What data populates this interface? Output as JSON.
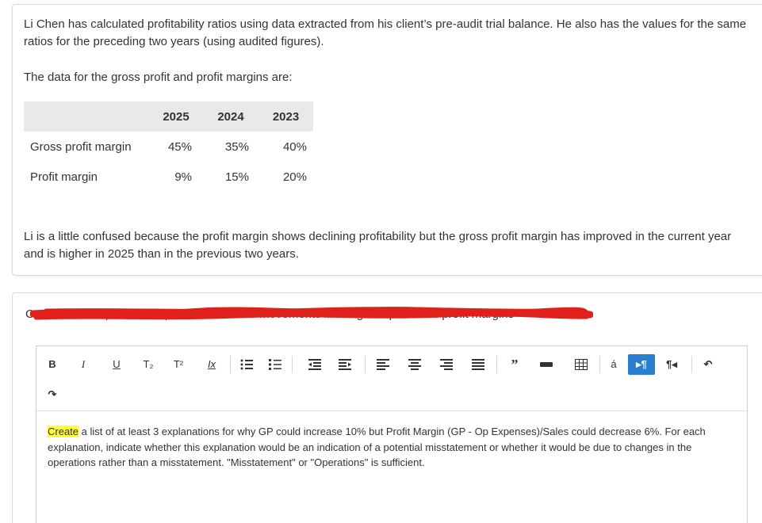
{
  "intro_text": "Li Chen has calculated profitability ratios using data extracted from his client’s pre-audit trial balance. He also has the values for the same ratios for the preceding two years (using audited figures).",
  "data_intro": "The data for the gross profit and profit margins are:",
  "table": {
    "headers": [
      "",
      "2025",
      "2024",
      "2023"
    ],
    "rows": [
      {
        "label": "Gross profit margin",
        "values": [
          "45%",
          "35%",
          "40%"
        ]
      },
      {
        "label": "Profit margin",
        "values": [
          "9%",
          "15%",
          "20%"
        ]
      }
    ]
  },
  "confusion_text": "Li is a little confused because the profit margin shows declining profitability but the gross profit margin has improved in the current year and is higher in 2025 than in the previous two years.",
  "question_text": "Create a list of possible explanations for the movements in the gross profit and profit margins",
  "toolbar": {
    "buttons": [
      {
        "name": "bold-button",
        "label": "B"
      },
      {
        "name": "italic-button",
        "label": "I"
      },
      {
        "name": "underline-button",
        "label": "U"
      },
      {
        "name": "subscript-button",
        "label": "T₂"
      },
      {
        "name": "superscript-button",
        "label": "T²"
      },
      {
        "name": "clear-format-button",
        "label": "Ix"
      },
      {
        "name": "special-char-button",
        "label": "á"
      }
    ]
  },
  "answer": {
    "highlighted": "Create",
    "rest": " a list of at least 3 explanations for why GP could increase 10% but Profit Margin (GP - Op Expenses)/Sales could decrease 6%.  For each explanation, indicate whether this explanation would be an indication of a potential misstatement or whether it would be due to changes in the operations rather than a misstatement. \"Misstatement\" or \"Operations\" is sufficient."
  },
  "colors": {
    "highlight": "#ffff33",
    "redaction": "#e0201b",
    "active_button": "#2a7fd0",
    "header_bg": "#e9e9e9"
  }
}
